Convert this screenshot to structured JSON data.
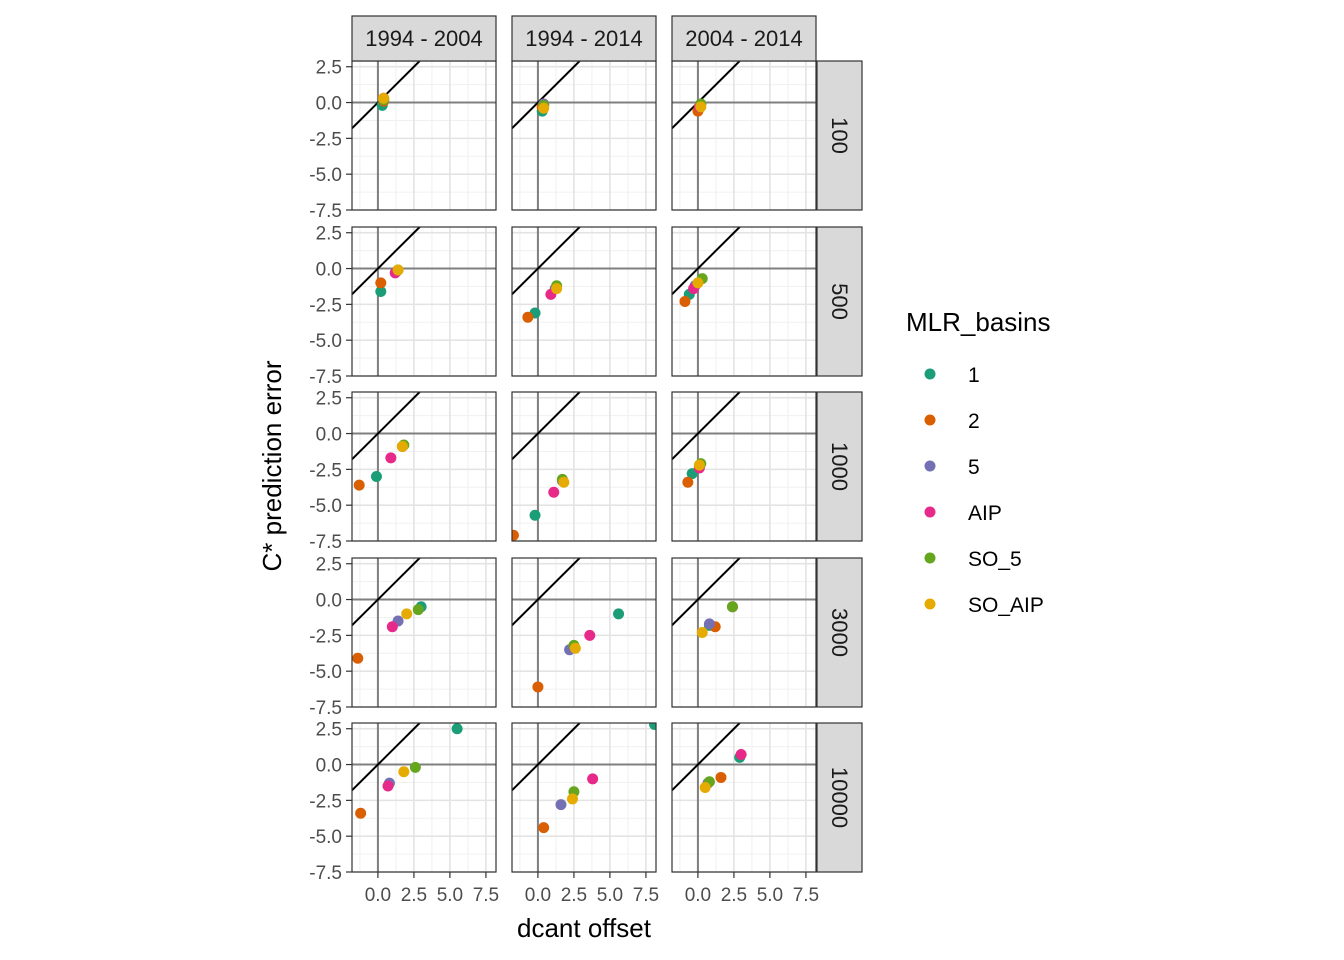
{
  "chart_data": {
    "type": "scatter",
    "facet_cols": [
      "1994 - 2004",
      "1994 - 2014",
      "2004 - 2014"
    ],
    "facet_rows": [
      "100",
      "500",
      "1000",
      "3000",
      "10000"
    ],
    "xlabel": "dcant offset",
    "ylabel": "C* prediction error",
    "xlim": [
      -1.8,
      8.2
    ],
    "ylim": [
      -7.5,
      2.9
    ],
    "x_ticks": [
      0,
      2.5,
      5,
      7.5
    ],
    "x_tick_labels": [
      "0.0",
      "2.5",
      "5.0",
      "7.5"
    ],
    "y_ticks": [
      2.5,
      0,
      -2.5,
      -5,
      -7.5
    ],
    "y_tick_labels": [
      "2.5",
      "0.0",
      "-2.5",
      "-5.0",
      "-7.5"
    ],
    "reference_line": "y = x",
    "grid": true,
    "legend": {
      "title": "MLR_basins",
      "position": "right",
      "entries": [
        {
          "name": "1",
          "color": "#1B9E77"
        },
        {
          "name": "2",
          "color": "#D95F02"
        },
        {
          "name": "5",
          "color": "#7570B3"
        },
        {
          "name": "AIP",
          "color": "#E7298A"
        },
        {
          "name": "SO_5",
          "color": "#66A61E"
        },
        {
          "name": "SO_AIP",
          "color": "#E6AB02"
        }
      ]
    },
    "panels": [
      {
        "col": "1994 - 2004",
        "row": "100",
        "points": [
          {
            "series": "1",
            "x": 0.3,
            "y": -0.2
          },
          {
            "series": "2",
            "x": 0.4,
            "y": 0.1
          },
          {
            "series": "5",
            "x": 0.4,
            "y": 0.2
          },
          {
            "series": "AIP",
            "x": 0.4,
            "y": 0.3
          },
          {
            "series": "SO_5",
            "x": 0.4,
            "y": 0.2
          },
          {
            "series": "SO_AIP",
            "x": 0.4,
            "y": 0.3
          }
        ]
      },
      {
        "col": "1994 - 2014",
        "row": "100",
        "points": [
          {
            "series": "1",
            "x": 0.3,
            "y": -0.6
          },
          {
            "series": "2",
            "x": 0.3,
            "y": -0.3
          },
          {
            "series": "5",
            "x": 0.4,
            "y": -0.1
          },
          {
            "series": "AIP",
            "x": 0.4,
            "y": -0.2
          },
          {
            "series": "SO_5",
            "x": 0.4,
            "y": -0.2
          },
          {
            "series": "SO_AIP",
            "x": 0.4,
            "y": -0.4
          }
        ]
      },
      {
        "col": "2004 - 2014",
        "row": "100",
        "points": [
          {
            "series": "1",
            "x": 0.1,
            "y": -0.4
          },
          {
            "series": "2",
            "x": 0.0,
            "y": -0.6
          },
          {
            "series": "5",
            "x": 0.2,
            "y": -0.1
          },
          {
            "series": "AIP",
            "x": 0.1,
            "y": -0.3
          },
          {
            "series": "SO_5",
            "x": 0.2,
            "y": -0.1
          },
          {
            "series": "SO_AIP",
            "x": 0.2,
            "y": -0.3
          }
        ]
      },
      {
        "col": "1994 - 2004",
        "row": "500",
        "points": [
          {
            "series": "1",
            "x": 0.2,
            "y": -1.6
          },
          {
            "series": "2",
            "x": 0.2,
            "y": -1.0
          },
          {
            "series": "5",
            "x": 1.3,
            "y": -0.2
          },
          {
            "series": "AIP",
            "x": 1.2,
            "y": -0.3
          },
          {
            "series": "SO_5",
            "x": 1.4,
            "y": -0.1
          },
          {
            "series": "SO_AIP",
            "x": 1.4,
            "y": -0.1
          }
        ]
      },
      {
        "col": "1994 - 2014",
        "row": "500",
        "points": [
          {
            "series": "1",
            "x": -0.2,
            "y": -3.1
          },
          {
            "series": "2",
            "x": -0.7,
            "y": -3.4
          },
          {
            "series": "5",
            "x": 1.2,
            "y": -1.4
          },
          {
            "series": "AIP",
            "x": 0.9,
            "y": -1.8
          },
          {
            "series": "SO_5",
            "x": 1.3,
            "y": -1.2
          },
          {
            "series": "SO_AIP",
            "x": 1.3,
            "y": -1.4
          }
        ]
      },
      {
        "col": "2004 - 2014",
        "row": "500",
        "points": [
          {
            "series": "1",
            "x": -0.6,
            "y": -1.8
          },
          {
            "series": "2",
            "x": -0.9,
            "y": -2.3
          },
          {
            "series": "5",
            "x": -0.2,
            "y": -1.2
          },
          {
            "series": "AIP",
            "x": -0.3,
            "y": -1.4
          },
          {
            "series": "SO_5",
            "x": 0.3,
            "y": -0.7
          },
          {
            "series": "SO_AIP",
            "x": 0.0,
            "y": -1.0
          }
        ]
      },
      {
        "col": "1994 - 2004",
        "row": "1000",
        "points": [
          {
            "series": "1",
            "x": -0.1,
            "y": -3.0
          },
          {
            "series": "2",
            "x": -1.3,
            "y": -3.6
          },
          {
            "series": "5",
            "x": 1.7,
            "y": -0.9
          },
          {
            "series": "AIP",
            "x": 0.9,
            "y": -1.7
          },
          {
            "series": "SO_5",
            "x": 1.8,
            "y": -0.8
          },
          {
            "series": "SO_AIP",
            "x": 1.7,
            "y": -0.9
          }
        ]
      },
      {
        "col": "1994 - 2014",
        "row": "1000",
        "points": [
          {
            "series": "1",
            "x": -0.2,
            "y": -5.7
          },
          {
            "series": "2",
            "x": -1.7,
            "y": -7.1
          },
          {
            "series": "5",
            "x": 1.7,
            "y": -3.3
          },
          {
            "series": "AIP",
            "x": 1.1,
            "y": -4.1
          },
          {
            "series": "SO_5",
            "x": 1.7,
            "y": -3.2
          },
          {
            "series": "SO_AIP",
            "x": 1.8,
            "y": -3.4
          }
        ]
      },
      {
        "col": "2004 - 2014",
        "row": "1000",
        "points": [
          {
            "series": "1",
            "x": -0.4,
            "y": -2.8
          },
          {
            "series": "2",
            "x": -0.7,
            "y": -3.4
          },
          {
            "series": "5",
            "x": 0.1,
            "y": -2.3
          },
          {
            "series": "AIP",
            "x": 0.1,
            "y": -2.4
          },
          {
            "series": "SO_5",
            "x": 0.2,
            "y": -2.1
          },
          {
            "series": "SO_AIP",
            "x": 0.1,
            "y": -2.2
          }
        ]
      },
      {
        "col": "1994 - 2004",
        "row": "3000",
        "points": [
          {
            "series": "1",
            "x": 3.0,
            "y": -0.5
          },
          {
            "series": "2",
            "x": -1.4,
            "y": -4.1
          },
          {
            "series": "5",
            "x": 1.4,
            "y": -1.5
          },
          {
            "series": "AIP",
            "x": 1.0,
            "y": -1.9
          },
          {
            "series": "SO_5",
            "x": 2.8,
            "y": -0.7
          },
          {
            "series": "SO_AIP",
            "x": 2.0,
            "y": -1.0
          }
        ]
      },
      {
        "col": "1994 - 2014",
        "row": "3000",
        "points": [
          {
            "series": "1",
            "x": 5.6,
            "y": -1.0
          },
          {
            "series": "2",
            "x": 0.0,
            "y": -6.1
          },
          {
            "series": "5",
            "x": 2.2,
            "y": -3.5
          },
          {
            "series": "AIP",
            "x": 3.6,
            "y": -2.5
          },
          {
            "series": "SO_5",
            "x": 2.5,
            "y": -3.2
          },
          {
            "series": "SO_AIP",
            "x": 2.6,
            "y": -3.4
          }
        ]
      },
      {
        "col": "2004 - 2014",
        "row": "3000",
        "points": [
          {
            "series": "1",
            "x": 0.8,
            "y": -1.8
          },
          {
            "series": "2",
            "x": 1.2,
            "y": -1.9
          },
          {
            "series": "5",
            "x": 0.8,
            "y": -1.7
          },
          {
            "series": "AIP",
            "x": 2.4,
            "y": -0.5
          },
          {
            "series": "SO_5",
            "x": 2.4,
            "y": -0.5
          },
          {
            "series": "SO_AIP",
            "x": 0.3,
            "y": -2.3
          }
        ]
      },
      {
        "col": "1994 - 2004",
        "row": "10000",
        "points": [
          {
            "series": "1",
            "x": 5.5,
            "y": 2.5
          },
          {
            "series": "2",
            "x": -1.2,
            "y": -3.4
          },
          {
            "series": "5",
            "x": 0.8,
            "y": -1.3
          },
          {
            "series": "AIP",
            "x": 0.7,
            "y": -1.5
          },
          {
            "series": "SO_5",
            "x": 2.6,
            "y": -0.2
          },
          {
            "series": "SO_AIP",
            "x": 1.8,
            "y": -0.5
          }
        ]
      },
      {
        "col": "1994 - 2014",
        "row": "10000",
        "points": [
          {
            "series": "1",
            "x": 8.1,
            "y": 2.8
          },
          {
            "series": "2",
            "x": 0.4,
            "y": -4.4
          },
          {
            "series": "5",
            "x": 1.6,
            "y": -2.8
          },
          {
            "series": "AIP",
            "x": 3.8,
            "y": -1.0
          },
          {
            "series": "SO_5",
            "x": 2.5,
            "y": -1.9
          },
          {
            "series": "SO_AIP",
            "x": 2.4,
            "y": -2.4
          }
        ]
      },
      {
        "col": "2004 - 2014",
        "row": "10000",
        "points": [
          {
            "series": "1",
            "x": 2.9,
            "y": 0.5
          },
          {
            "series": "2",
            "x": 1.6,
            "y": -0.9
          },
          {
            "series": "5",
            "x": 0.7,
            "y": -1.3
          },
          {
            "series": "AIP",
            "x": 3.0,
            "y": 0.7
          },
          {
            "series": "SO_5",
            "x": 0.8,
            "y": -1.2
          },
          {
            "series": "SO_AIP",
            "x": 0.5,
            "y": -1.6
          }
        ]
      }
    ]
  }
}
